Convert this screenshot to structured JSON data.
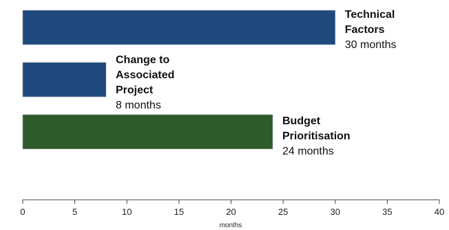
{
  "chart_data": {
    "type": "bar",
    "orientation": "horizontal",
    "categories": [
      {
        "name_lines": [
          "Technical",
          "Factors"
        ],
        "value_label": "30 months",
        "value": 30,
        "color": "#1f497d"
      },
      {
        "name_lines": [
          "Change to",
          "Associated",
          "Project"
        ],
        "value_label": "8 months",
        "value": 8,
        "color": "#1f497d"
      },
      {
        "name_lines": [
          "Budget",
          "Prioritisation"
        ],
        "value_label": "24 months",
        "value": 24,
        "color": "#2e5b2a"
      }
    ],
    "xlabel": "months",
    "xlim": [
      0,
      40
    ],
    "xticks": [
      0,
      5,
      10,
      15,
      20,
      25,
      30,
      35,
      40
    ],
    "grid": false,
    "legend": "none"
  }
}
